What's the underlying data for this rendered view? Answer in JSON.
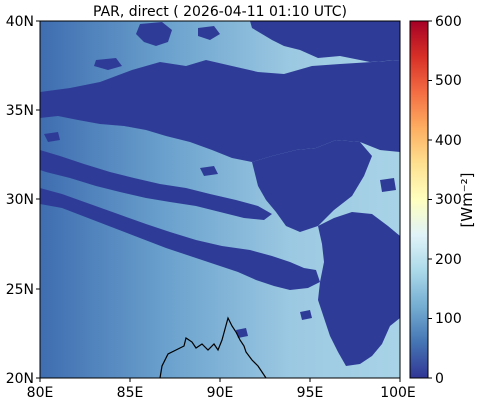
{
  "title": "PAR, direct ( 2026-04-11 01:10 UTC)",
  "map": {
    "x_ticks": [
      "80E",
      "85E",
      "90E",
      "95E",
      "100E"
    ],
    "y_ticks": [
      "40N",
      "35N",
      "30N",
      "25N",
      "20N"
    ],
    "lon_range": [
      80,
      100
    ],
    "lat_range": [
      20,
      40
    ],
    "clear_sky_color": "#9fcde4",
    "cloud_color": "#2f3c97",
    "coastline_color": "#000000"
  },
  "colorbar": {
    "label": "[Wm⁻²]",
    "ticks": [
      "600",
      "500",
      "400",
      "300",
      "200",
      "100",
      "0"
    ],
    "range": [
      0,
      600
    ],
    "stops": [
      "#313695",
      "#4575b4",
      "#74add1",
      "#abd9e9",
      "#e0f3f8",
      "#ffffbf",
      "#fee090",
      "#fdae61",
      "#f46d43",
      "#d73027",
      "#a50026"
    ]
  }
}
